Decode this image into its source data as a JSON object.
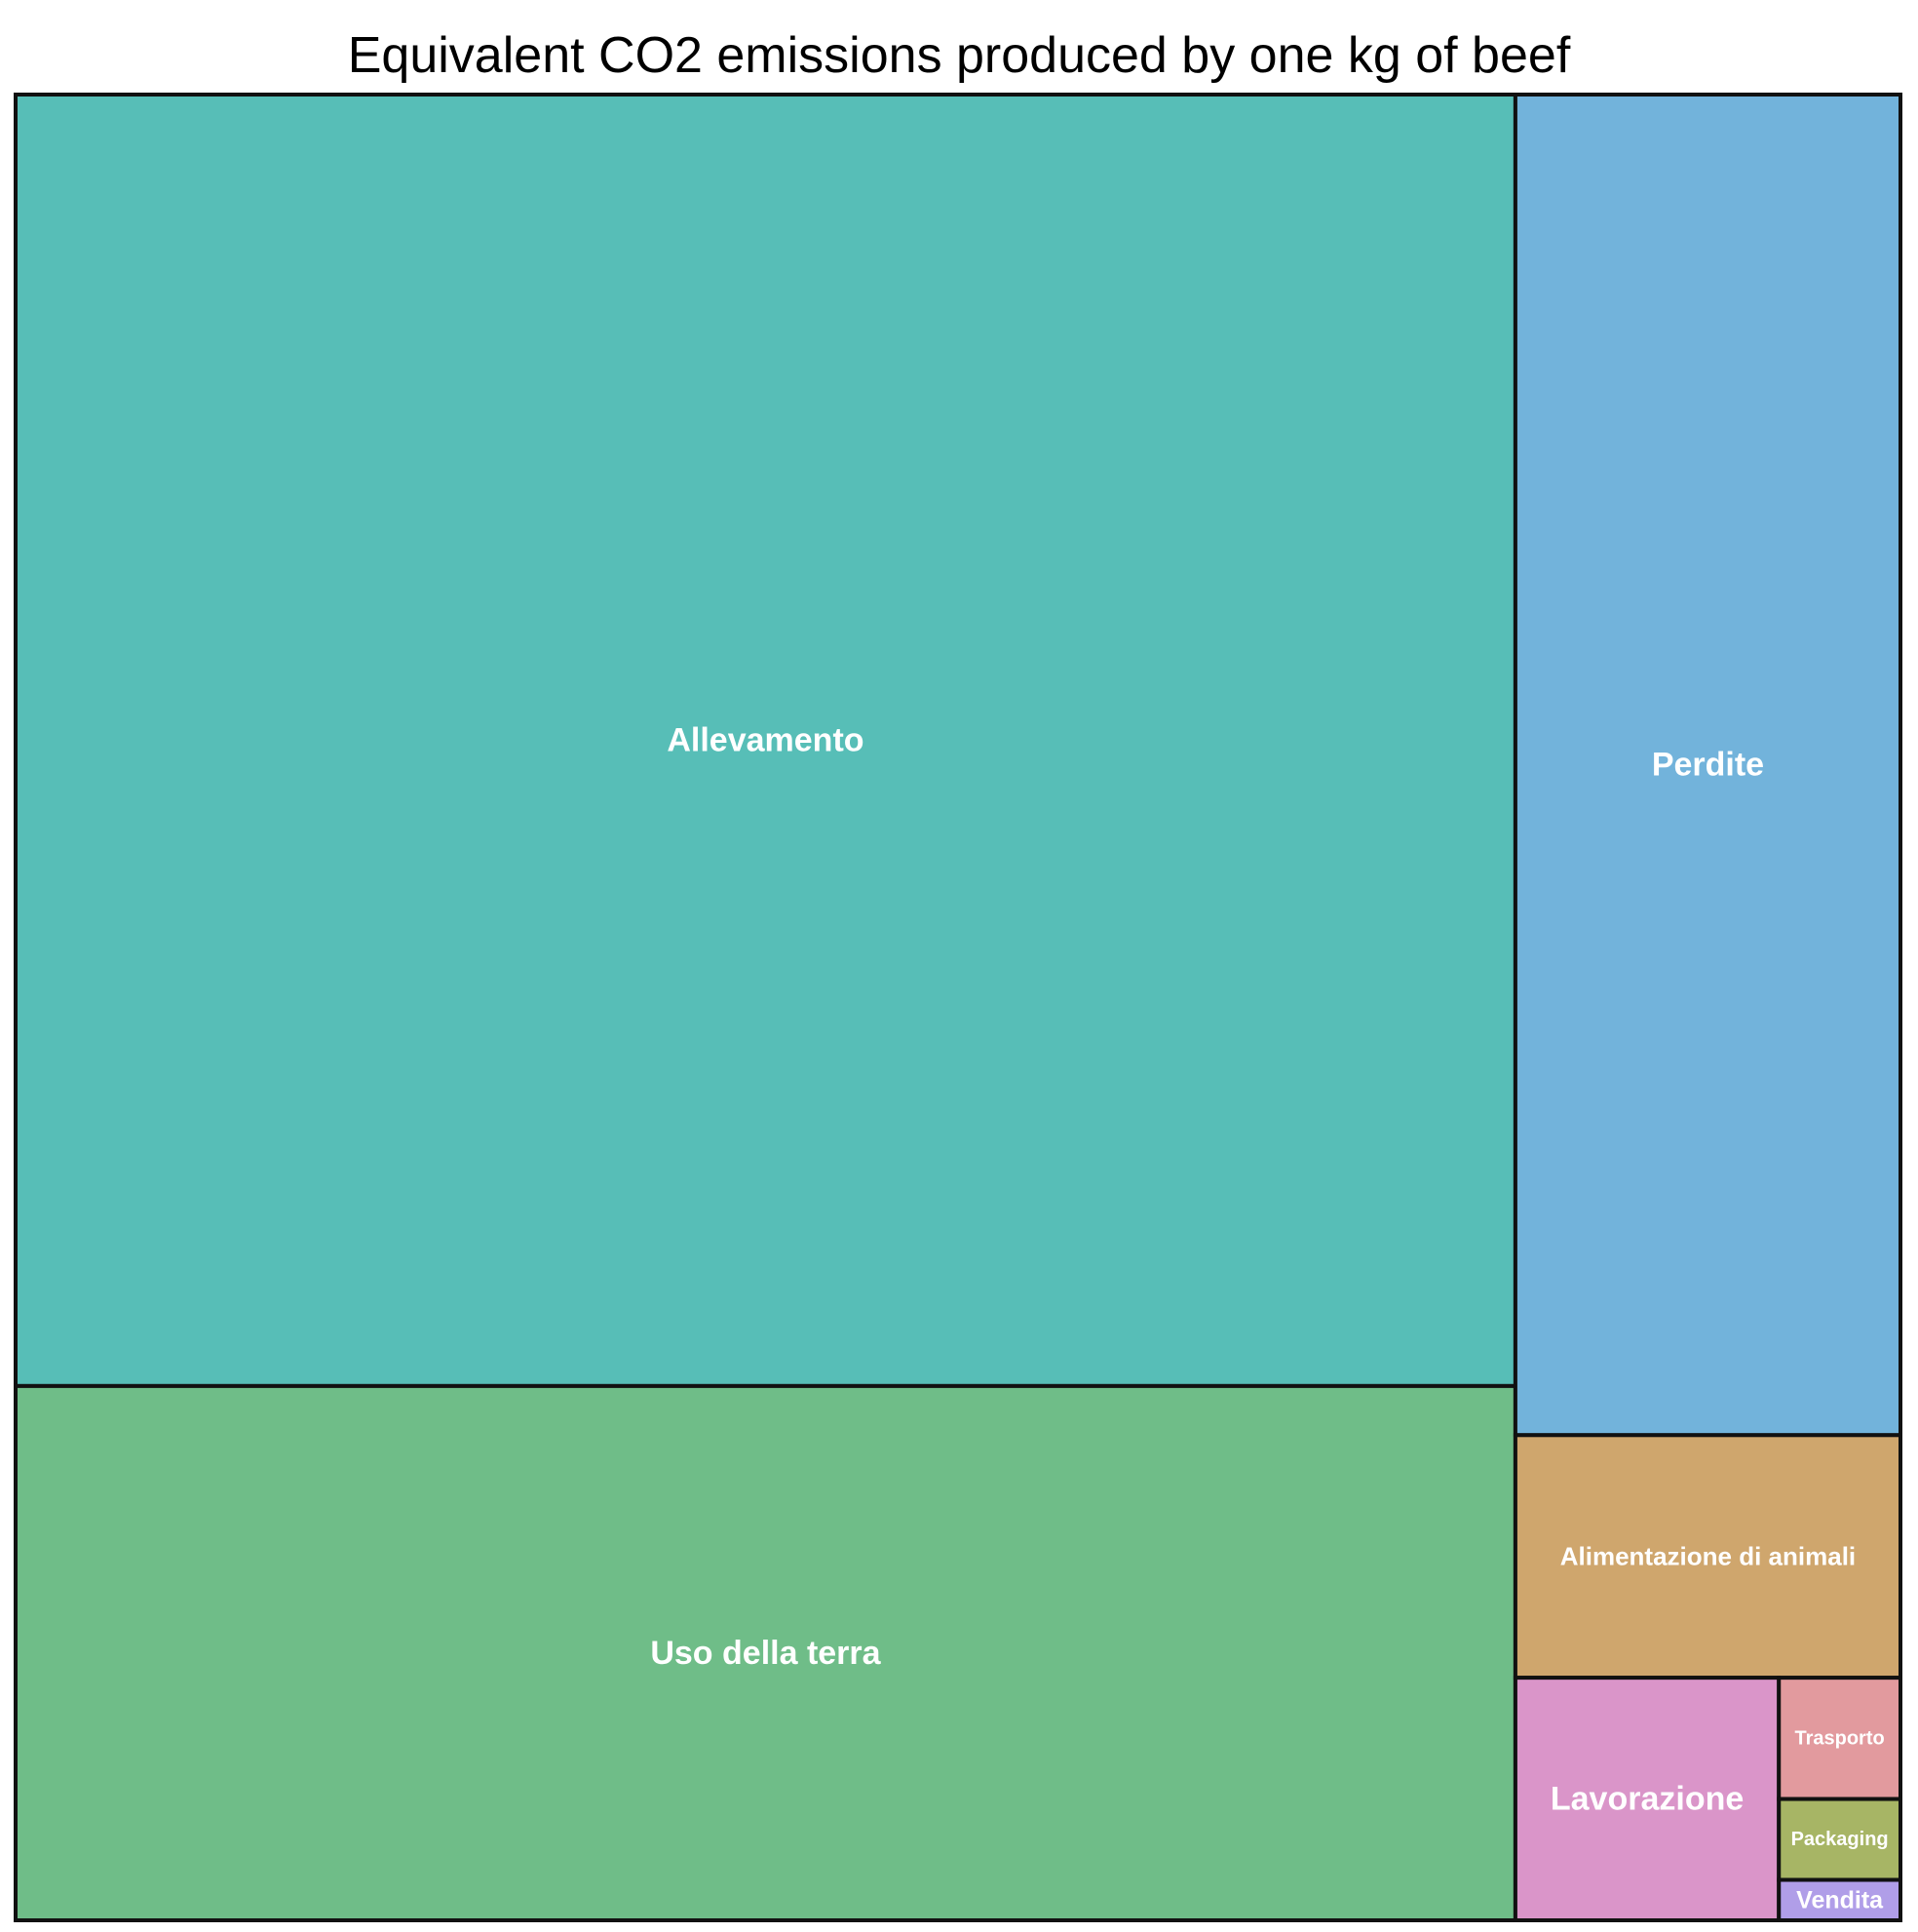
{
  "chart_data": {
    "type": "treemap",
    "title": "Equivalent CO2 emissions produced by one kg of beef",
    "items": [
      {
        "label": "Allevamento",
        "value": 39.4,
        "color": "#57beb7"
      },
      {
        "label": "Uso della terra",
        "value": 16.3,
        "color": "#6fbd88"
      },
      {
        "label": "Perdite",
        "value": 10.5,
        "color": "#72b3db"
      },
      {
        "label": "Alimentazione di animali",
        "value": 1.9,
        "color": "#cfa66d"
      },
      {
        "label": "Lavorazione",
        "value": 1.3,
        "color": "#da95c9"
      },
      {
        "label": "Trasporto",
        "value": 0.3,
        "color": "#e29a9e"
      },
      {
        "label": "Packaging",
        "value": 0.2,
        "color": "#a7b565"
      },
      {
        "label": "Vendita",
        "value": 0.1,
        "color": "#b09ee8"
      }
    ]
  }
}
